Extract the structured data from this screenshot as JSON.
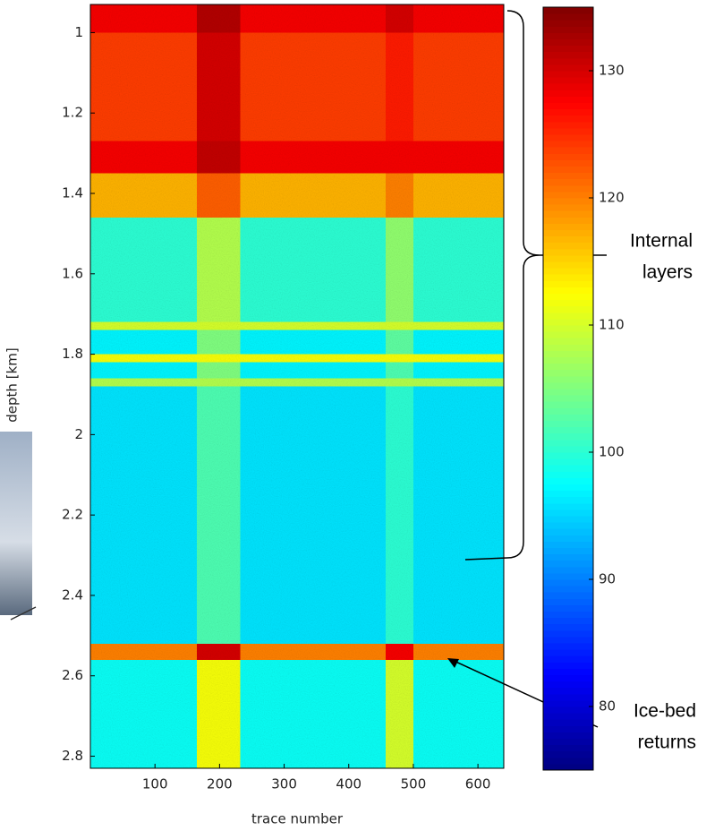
{
  "chart_data": {
    "type": "heatmap",
    "ylabel": "depth [km]",
    "xlabel": "trace number",
    "xbins": [
      0,
      165,
      232,
      457,
      500,
      640
    ],
    "ybins": [
      0.93,
      1.0,
      1.27,
      1.35,
      1.46,
      1.72,
      1.74,
      1.8,
      1.82,
      1.86,
      1.88,
      2.52,
      2.56,
      2.83
    ],
    "values": [
      [
        128,
        132,
        128,
        130,
        128
      ],
      [
        124,
        130,
        124,
        126,
        124
      ],
      [
        128,
        131,
        128,
        128,
        128
      ],
      [
        117,
        122,
        117,
        120,
        117
      ],
      [
        100,
        108,
        100,
        106,
        100
      ],
      [
        110,
        110,
        110,
        110,
        110
      ],
      [
        97,
        105,
        97,
        103,
        97
      ],
      [
        112,
        112,
        112,
        112,
        112
      ],
      [
        97,
        105,
        97,
        102,
        97
      ],
      [
        108,
        108,
        108,
        108,
        108
      ],
      [
        96,
        102,
        96,
        100,
        96
      ],
      [
        120,
        130,
        120,
        128,
        120
      ],
      [
        98,
        112,
        98,
        110,
        98
      ]
    ],
    "xlim": [
      0,
      640
    ],
    "ylim": [
      2.83,
      0.93
    ],
    "xticks": [
      100,
      200,
      300,
      400,
      500,
      600
    ],
    "yticks": [
      1,
      1.2,
      1.4,
      1.6,
      1.8,
      2,
      2.2,
      2.4,
      2.6,
      2.8
    ],
    "colormap": "jet",
    "clim": [
      75,
      135
    ],
    "cticks": [
      80,
      90,
      100,
      110,
      120,
      130
    ],
    "annotations": [
      [
        "Internal",
        "layers"
      ],
      [
        "Ice-bed",
        "returns"
      ]
    ]
  }
}
